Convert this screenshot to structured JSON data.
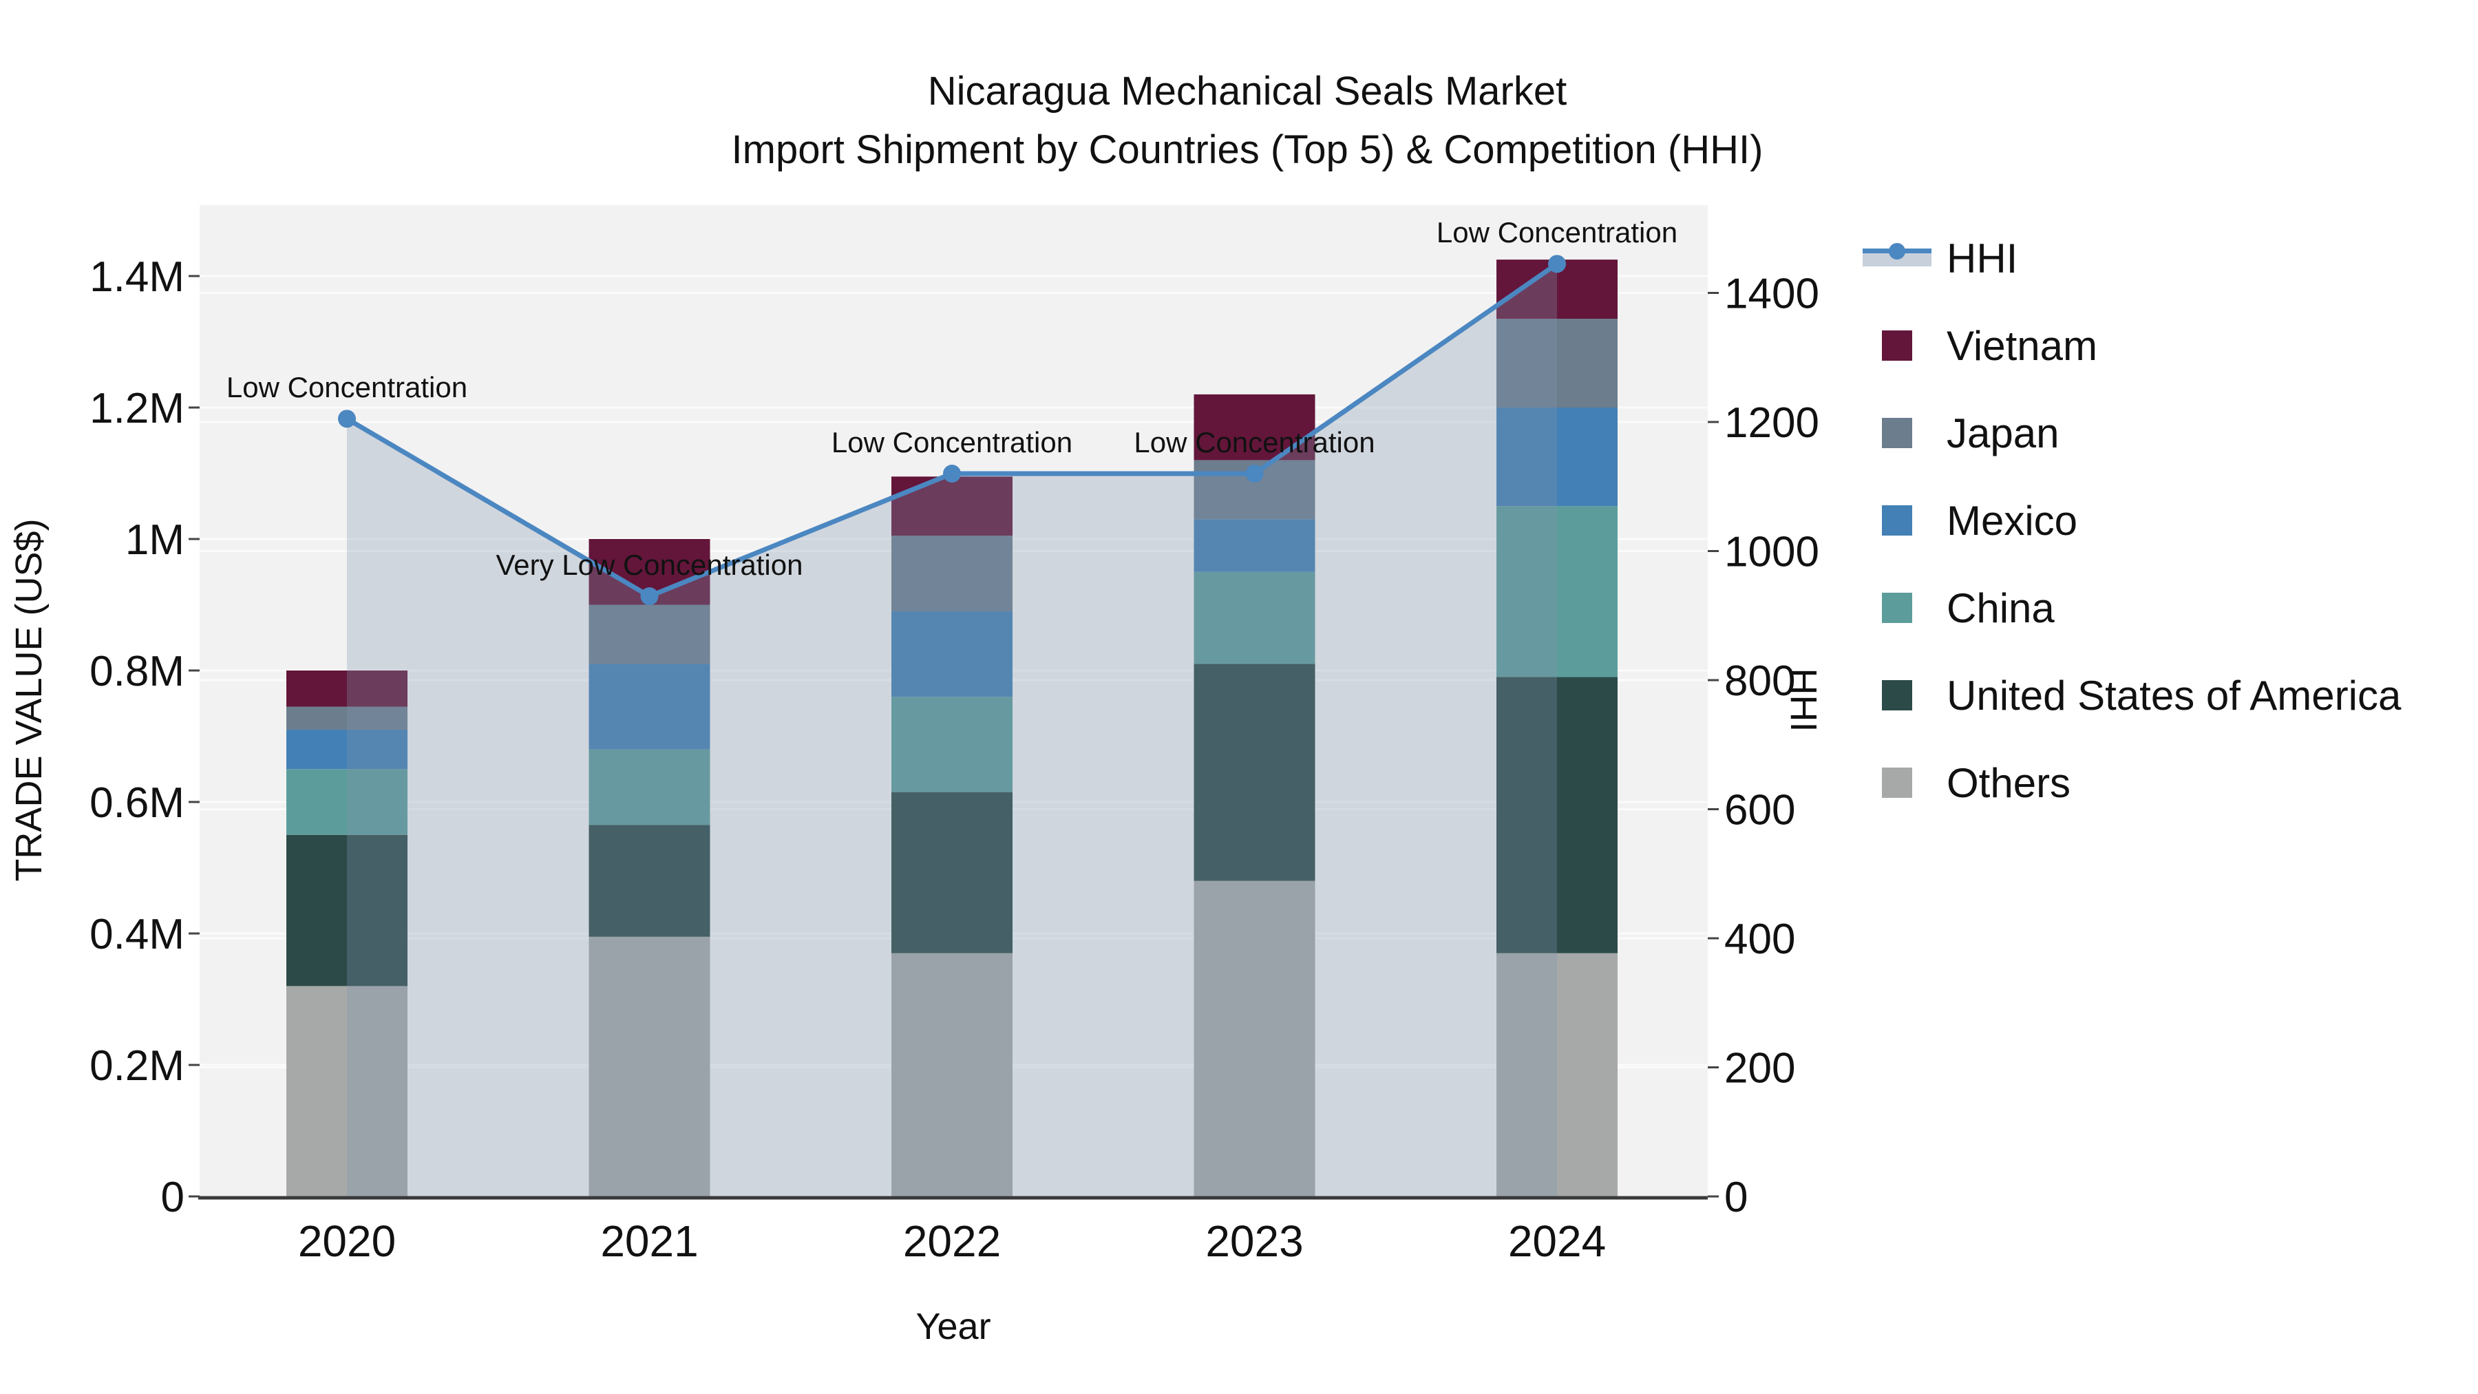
{
  "title": {
    "line1": "Nicaragua Mechanical Seals Market",
    "line2": "Import Shipment by Countries (Top 5) & Competition (HHI)"
  },
  "axes": {
    "x": {
      "label": "Year",
      "tick_labels": [
        "2020",
        "2021",
        "2022",
        "2023",
        "2024"
      ]
    },
    "y_left": {
      "label": "TRADE VALUE (US$)",
      "tick_labels": [
        "0",
        "0.2M",
        "0.4M",
        "0.6M",
        "0.8M",
        "1M",
        "1.2M",
        "1.4M"
      ],
      "tick_values_millions": [
        0,
        0.2,
        0.4,
        0.6,
        0.8,
        1,
        1.2,
        1.4
      ]
    },
    "y_right": {
      "label": "HHI",
      "tick_labels": [
        "0",
        "200",
        "400",
        "600",
        "800",
        "1000",
        "1200",
        "1400"
      ],
      "tick_values": [
        0,
        200,
        400,
        600,
        800,
        1000,
        1200,
        1400
      ]
    }
  },
  "legend": {
    "items": [
      {
        "label": "HHI",
        "swatch": "line"
      },
      {
        "label": "Vietnam",
        "swatch": "square",
        "color": "#63163A"
      },
      {
        "label": "Japan",
        "swatch": "square",
        "color": "#6C7D8E"
      },
      {
        "label": "Mexico",
        "swatch": "square",
        "color": "#4380B5"
      },
      {
        "label": "China",
        "swatch": "square",
        "color": "#5C9D9B"
      },
      {
        "label": "United States of America",
        "swatch": "square",
        "color": "#2C4A48"
      },
      {
        "label": "Others",
        "swatch": "square",
        "color": "#A7A9A9"
      }
    ]
  },
  "colors": {
    "hhi_line": "#4B87C1",
    "hhi_area_fill": "#8094AD",
    "plot_background": "#F2F2F2",
    "gridline": "#FBFBFB",
    "axis_line": "#3A3A3A",
    "text": "#111111"
  },
  "chart_data": {
    "type": "bar",
    "subtype": "stacked-bar-with-line-overlay-and-area-fill",
    "title": "Nicaragua Mechanical Seals Market — Import Shipment by Countries (Top 5) & Competition (HHI)",
    "xlabel": "Year",
    "ylabel_left": "TRADE VALUE (US$)",
    "ylabel_right": "HHI",
    "categories": [
      "2020",
      "2021",
      "2022",
      "2023",
      "2024"
    ],
    "bar_value_unit": "million US$",
    "stack_order_top_to_bottom": [
      "Vietnam",
      "Japan",
      "Mexico",
      "China",
      "United States of America",
      "Others"
    ],
    "series": [
      {
        "name": "Vietnam",
        "color": "#63163A",
        "values": [
          0.055,
          0.1,
          0.09,
          0.1,
          0.09
        ]
      },
      {
        "name": "Japan",
        "color": "#6C7D8E",
        "values": [
          0.035,
          0.09,
          0.115,
          0.09,
          0.135
        ]
      },
      {
        "name": "Mexico",
        "color": "#4380B5",
        "values": [
          0.06,
          0.13,
          0.13,
          0.08,
          0.15
        ]
      },
      {
        "name": "China",
        "color": "#5C9D9B",
        "values": [
          0.1,
          0.115,
          0.145,
          0.14,
          0.26
        ]
      },
      {
        "name": "United States of America",
        "color": "#2C4A48",
        "values": [
          0.23,
          0.17,
          0.245,
          0.33,
          0.42
        ]
      },
      {
        "name": "Others",
        "color": "#A7A9A9",
        "values": [
          0.32,
          0.395,
          0.37,
          0.48,
          0.37
        ]
      }
    ],
    "bar_totals_millions": [
      0.8,
      1.0,
      1.095,
      1.22,
      1.425
    ],
    "line_series": {
      "name": "HHI",
      "axis": "right",
      "color": "#4B87C1",
      "values": [
        1205,
        930,
        1120,
        1120,
        1445
      ],
      "point_annotations": [
        "Low Concentration",
        "Very Low Concentration",
        "Low Concentration",
        "Low Concentration",
        "Low Concentration"
      ],
      "area_fill_under_line": true
    },
    "ylim_left_millions": [
      0,
      1.51
    ],
    "ylim_right": [
      0,
      1535
    ],
    "grid": true,
    "legend_position": "right-outside"
  }
}
